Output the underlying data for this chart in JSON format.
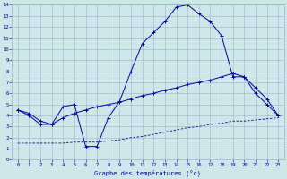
{
  "xlabel": "Graphe des températures (°c)",
  "bg_color": "#cce8e8",
  "grid_color": "#aaaacc",
  "line_color": "#0000aa",
  "xlim": [
    -0.5,
    23.5
  ],
  "ylim": [
    0,
    14
  ],
  "xticks": [
    0,
    1,
    2,
    3,
    4,
    5,
    6,
    7,
    8,
    9,
    10,
    11,
    12,
    13,
    14,
    15,
    16,
    17,
    18,
    19,
    20,
    21,
    22,
    23
  ],
  "yticks": [
    0,
    1,
    2,
    3,
    4,
    5,
    6,
    7,
    8,
    9,
    10,
    11,
    12,
    13,
    14
  ],
  "curve1_x": [
    0,
    1,
    2,
    3,
    4,
    5,
    6,
    7,
    8,
    9,
    10,
    11,
    12,
    13,
    14,
    15,
    16,
    17,
    18,
    19,
    20,
    21,
    22,
    23
  ],
  "curve1_y": [
    4.5,
    4.0,
    3.2,
    3.2,
    4.8,
    5.0,
    1.2,
    1.2,
    3.8,
    5.3,
    8.0,
    10.5,
    11.5,
    12.5,
    13.8,
    14.0,
    13.2,
    12.5,
    11.2,
    7.5,
    7.5,
    6.0,
    5.0,
    4.0
  ],
  "curve2_x": [
    0,
    1,
    2,
    3,
    4,
    5,
    6,
    7,
    8,
    9,
    10,
    11,
    12,
    13,
    14,
    15,
    16,
    17,
    18,
    19,
    20,
    21,
    22,
    23
  ],
  "curve2_y": [
    4.5,
    4.2,
    3.5,
    3.2,
    3.8,
    4.2,
    4.5,
    4.8,
    5.0,
    5.2,
    5.5,
    5.8,
    6.0,
    6.3,
    6.5,
    6.8,
    7.0,
    7.2,
    7.5,
    7.8,
    7.5,
    6.5,
    5.5,
    4.0
  ],
  "curve3_x": [
    0,
    1,
    2,
    3,
    4,
    5,
    6,
    7,
    8,
    9,
    10,
    11,
    12,
    13,
    14,
    15,
    16,
    17,
    18,
    19,
    20,
    21,
    22,
    23
  ],
  "curve3_y": [
    1.5,
    1.5,
    1.5,
    1.5,
    1.5,
    1.6,
    1.6,
    1.6,
    1.7,
    1.8,
    2.0,
    2.1,
    2.3,
    2.5,
    2.7,
    2.9,
    3.0,
    3.2,
    3.3,
    3.5,
    3.5,
    3.6,
    3.7,
    3.8
  ]
}
